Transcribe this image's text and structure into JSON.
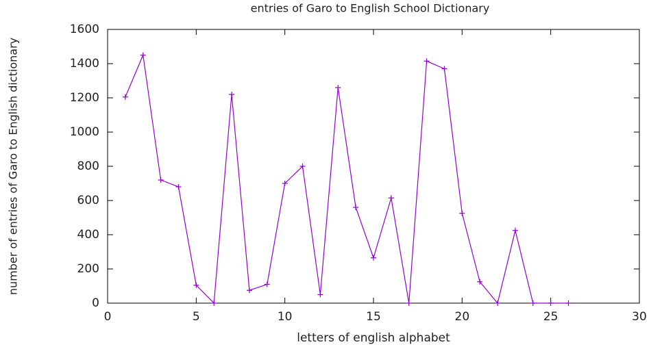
{
  "chart_data": {
    "type": "line",
    "title": "entries of Garo to English School Dictionary",
    "x_label": "letters of english alphabet",
    "y_label": "number of entries of Garo to English dictionary",
    "x": [
      1,
      2,
      3,
      4,
      5,
      6,
      7,
      8,
      9,
      10,
      11,
      12,
      13,
      14,
      15,
      16,
      17,
      18,
      19,
      20,
      21,
      22,
      23,
      24,
      25,
      26
    ],
    "series": [
      {
        "name": "entries",
        "color": "#9400d3",
        "values": [
          1205,
          1450,
          720,
          680,
          105,
          0,
          1220,
          75,
          110,
          700,
          800,
          50,
          1260,
          560,
          265,
          615,
          0,
          1415,
          1370,
          525,
          125,
          0,
          425,
          0,
          0,
          0
        ]
      }
    ],
    "xlim": [
      0,
      30
    ],
    "xticks": [
      0,
      5,
      10,
      15,
      20,
      25,
      30
    ],
    "ylim": [
      0,
      1600
    ],
    "yticks": [
      0,
      200,
      400,
      600,
      800,
      1000,
      1200,
      1400,
      1600
    ],
    "grid": false
  }
}
